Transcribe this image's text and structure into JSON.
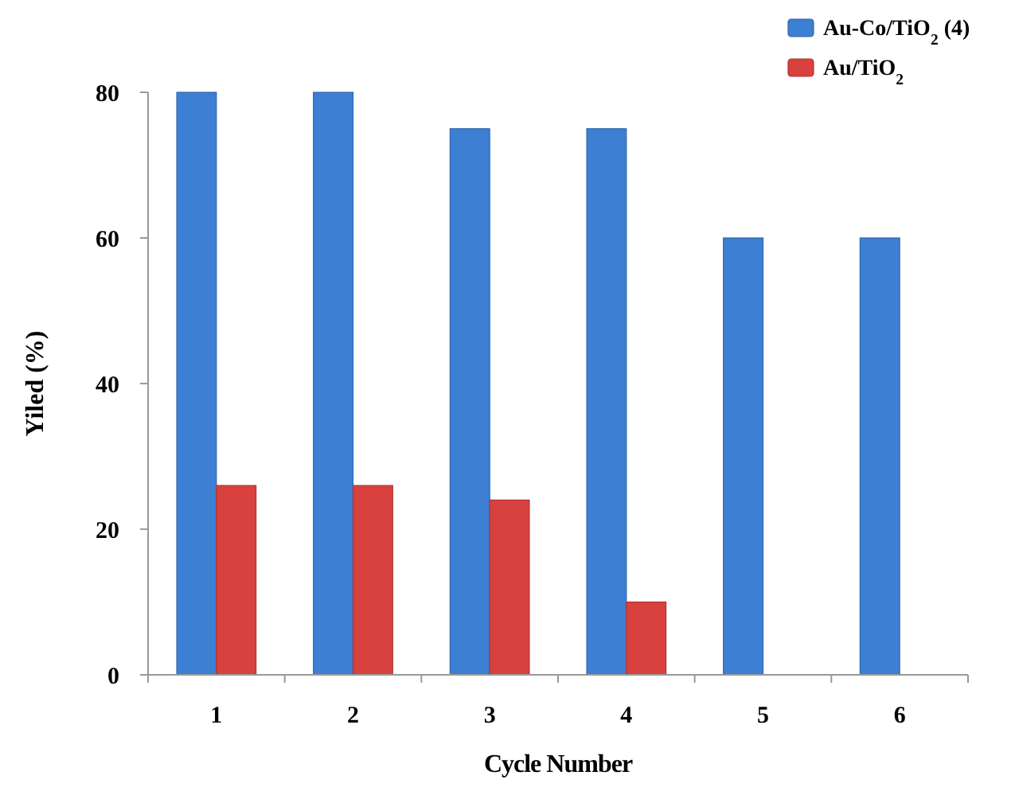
{
  "chart_data": {
    "type": "bar",
    "xlabel": "Cycle Number",
    "ylabel": "Yiled (%)",
    "categories": [
      "1",
      "2",
      "3",
      "4",
      "5",
      "6"
    ],
    "series": [
      {
        "name": "Au-Co/TiO$_{2}$ (4)",
        "color": "#3d7fd3",
        "values": [
          80,
          80,
          75,
          75,
          60,
          60
        ]
      },
      {
        "name": "Au/TiO$_{2}$",
        "color": "#d8413e",
        "values": [
          26,
          26,
          24,
          10,
          null,
          null
        ]
      }
    ],
    "ylim": [
      0,
      80
    ],
    "yticks": [
      0,
      20,
      40,
      60,
      80
    ],
    "grid": false,
    "legend": "top right"
  }
}
